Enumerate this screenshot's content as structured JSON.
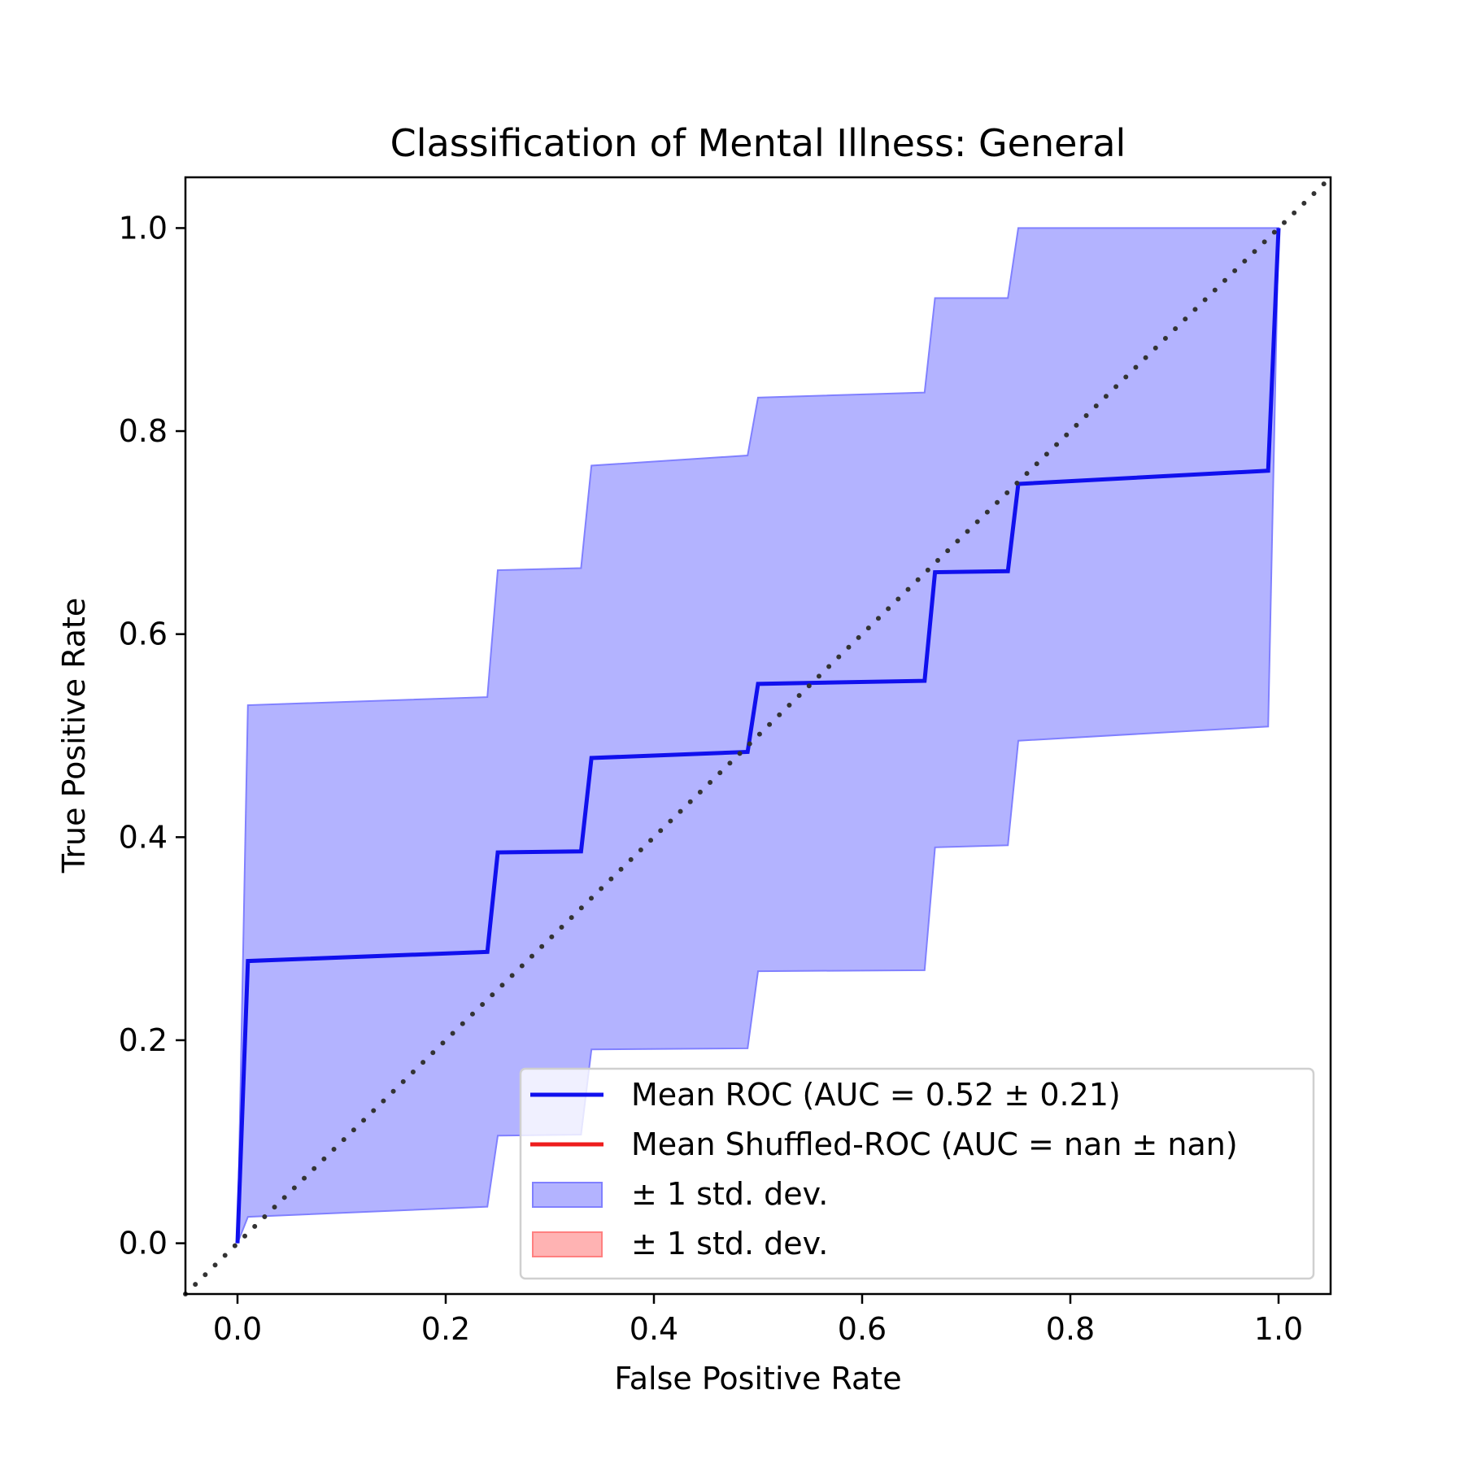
{
  "chart_data": {
    "type": "line",
    "title": "Classification of Mental Illness: General",
    "xlabel": "False Positive Rate",
    "ylabel": "True Positive Rate",
    "xlim": [
      -0.05,
      1.05
    ],
    "ylim": [
      -0.05,
      1.05
    ],
    "xticks": [
      "0.0",
      "0.2",
      "0.4",
      "0.6",
      "0.8",
      "1.0"
    ],
    "yticks": [
      "0.0",
      "0.2",
      "0.4",
      "0.6",
      "0.8",
      "1.0"
    ],
    "grid": false,
    "legend_position": "lower-right",
    "chance_line": {
      "x": [
        -0.05,
        1.05
      ],
      "y": [
        -0.05,
        1.05
      ],
      "color": "#333333",
      "style": "dotted"
    },
    "series": [
      {
        "name": "Mean ROC (AUC = 0.52 ± 0.21)",
        "color": "#1010ee",
        "x": [
          0.0,
          0.01,
          0.24,
          0.25,
          0.33,
          0.34,
          0.49,
          0.5,
          0.66,
          0.67,
          0.74,
          0.75,
          0.99,
          1.0
        ],
        "y": [
          0.0,
          0.278,
          0.287,
          0.385,
          0.386,
          0.478,
          0.484,
          0.551,
          0.554,
          0.661,
          0.662,
          0.748,
          0.761,
          1.0
        ]
      },
      {
        "name": "Mean Shuffled-ROC (AUC = nan ± nan)",
        "color": "#ee1c1c",
        "x": [],
        "y": []
      }
    ],
    "bands": [
      {
        "name": "± 1 std. dev.",
        "color": "#8080ff",
        "x": [
          0.0,
          0.01,
          0.24,
          0.25,
          0.33,
          0.34,
          0.49,
          0.5,
          0.66,
          0.67,
          0.74,
          0.75,
          0.99,
          1.0
        ],
        "upper": [
          0.0,
          0.53,
          0.538,
          0.663,
          0.665,
          0.766,
          0.776,
          0.833,
          0.838,
          0.931,
          0.931,
          1.0,
          1.0,
          1.0
        ],
        "lower": [
          0.0,
          0.026,
          0.036,
          0.106,
          0.107,
          0.191,
          0.192,
          0.268,
          0.269,
          0.39,
          0.392,
          0.495,
          0.509,
          1.0
        ]
      },
      {
        "name": "± 1 std. dev.",
        "color": "#ff8080",
        "x": [],
        "upper": [],
        "lower": []
      }
    ]
  }
}
